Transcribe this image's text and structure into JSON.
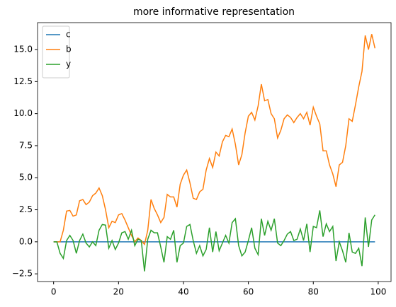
{
  "chart_data": {
    "type": "line",
    "title": "more informative representation",
    "x": [
      0,
      1,
      2,
      3,
      4,
      5,
      6,
      7,
      8,
      9,
      10,
      11,
      12,
      13,
      14,
      15,
      16,
      17,
      18,
      19,
      20,
      21,
      22,
      23,
      24,
      25,
      26,
      27,
      28,
      29,
      30,
      31,
      32,
      33,
      34,
      35,
      36,
      37,
      38,
      39,
      40,
      41,
      42,
      43,
      44,
      45,
      46,
      47,
      48,
      49,
      50,
      51,
      52,
      53,
      54,
      55,
      56,
      57,
      58,
      59,
      60,
      61,
      62,
      63,
      64,
      65,
      66,
      67,
      68,
      69,
      70,
      71,
      72,
      73,
      74,
      75,
      76,
      77,
      78,
      79,
      80,
      81,
      82,
      83,
      84,
      85,
      86,
      87,
      88,
      89,
      90,
      91,
      92,
      93,
      94,
      95,
      96,
      97,
      98,
      99
    ],
    "series": [
      {
        "name": "c",
        "color": "#1f77b4",
        "values": [
          0,
          0,
          0,
          0,
          0,
          0,
          0,
          0,
          0,
          0,
          0,
          0,
          0,
          0,
          0,
          0,
          0,
          0,
          0,
          0,
          0,
          0,
          0,
          0,
          0,
          0,
          0,
          0,
          0,
          0,
          0,
          0,
          0,
          0,
          0,
          0,
          0,
          0,
          0,
          0,
          0,
          0,
          0,
          0,
          0,
          0,
          0,
          0,
          0,
          0,
          0,
          0,
          0,
          0,
          0,
          0,
          0,
          0,
          0,
          0,
          0,
          0,
          0,
          0,
          0,
          0,
          0,
          0,
          0,
          0,
          0,
          0,
          0,
          0,
          0,
          0,
          0,
          0,
          0,
          0,
          0,
          0,
          0,
          0,
          0,
          0,
          0,
          0,
          0,
          0,
          0,
          0,
          0,
          0,
          0,
          0,
          0,
          0,
          0,
          0
        ]
      },
      {
        "name": "b",
        "color": "#ff7f0e",
        "values": [
          0,
          0,
          0,
          0.9,
          2.4,
          2.45,
          2.0,
          2.1,
          3.2,
          3.3,
          2.9,
          3.1,
          3.6,
          3.8,
          4.2,
          3.6,
          2.5,
          1.1,
          1.6,
          1.5,
          2.1,
          2.2,
          1.7,
          1.1,
          0.5,
          0.0,
          0.3,
          0.1,
          -0.2,
          0.9,
          3.3,
          2.6,
          2.1,
          1.5,
          1.9,
          3.7,
          3.5,
          3.5,
          2.7,
          4.5,
          5.2,
          5.6,
          4.6,
          3.4,
          3.3,
          3.9,
          4.1,
          5.6,
          6.5,
          5.8,
          7.0,
          6.7,
          7.8,
          8.3,
          8.2,
          8.8,
          7.6,
          6.0,
          6.8,
          8.5,
          9.8,
          10.1,
          9.5,
          10.6,
          12.3,
          11.0,
          11.1,
          10.0,
          9.6,
          8.1,
          8.7,
          9.6,
          9.9,
          9.7,
          9.3,
          9.7,
          10.0,
          9.6,
          10.1,
          9.1,
          10.5,
          9.8,
          9.2,
          7.1,
          7.1,
          6.0,
          5.3,
          4.3,
          6.0,
          6.2,
          7.5,
          9.6,
          9.4,
          10.7,
          12.1,
          13.3,
          16.1,
          15.0,
          16.2,
          15.1
        ]
      },
      {
        "name": "y",
        "color": "#2ca02c",
        "values": [
          0,
          0,
          -0.9,
          -1.3,
          0.1,
          0.5,
          0.1,
          -0.9,
          0.1,
          0.6,
          -0.1,
          -0.4,
          0.0,
          -0.3,
          0.9,
          1.35,
          1.3,
          -0.5,
          0.1,
          -0.6,
          -0.1,
          0.7,
          0.8,
          0.2,
          0.9,
          -0.3,
          0.2,
          0.1,
          -2.3,
          0.2,
          0.9,
          0.7,
          0.7,
          -0.4,
          -1.6,
          0.4,
          0.2,
          0.9,
          -1.6,
          -0.3,
          -0.1,
          1.2,
          1.35,
          0.1,
          -0.9,
          -0.3,
          -1.1,
          -0.6,
          1.1,
          -0.8,
          0.8,
          -0.7,
          -0.1,
          0.5,
          -0.1,
          1.5,
          1.8,
          -0.3,
          -1.1,
          -0.8,
          0.1,
          1.1,
          -0.5,
          -1.0,
          1.8,
          0.5,
          1.6,
          0.9,
          1.8,
          -0.1,
          -0.3,
          0.1,
          0.6,
          0.8,
          0.1,
          0.2,
          1.0,
          0.1,
          1.4,
          -0.8,
          1.2,
          1.1,
          2.45,
          0.4,
          1.4,
          0.8,
          1.2,
          -1.5,
          0.0,
          -0.7,
          -1.6,
          0.7,
          -0.8,
          -0.9,
          -0.5,
          -1.9,
          1.9,
          -0.4,
          1.7,
          2.1
        ]
      }
    ],
    "xlim": [
      -4.95,
      103.95
    ],
    "xticks": [
      0,
      20,
      40,
      60,
      80,
      100
    ],
    "ylim": [
      -3.1,
      17.1
    ],
    "yticks": [
      {
        "value": -2.5,
        "label": "−2.5"
      },
      {
        "value": 0,
        "label": "0.0"
      },
      {
        "value": 2.5,
        "label": "2.5"
      },
      {
        "value": 5,
        "label": "5.0"
      },
      {
        "value": 7.5,
        "label": "7.5"
      },
      {
        "value": 10,
        "label": "10.0"
      },
      {
        "value": 12.5,
        "label": "12.5"
      },
      {
        "value": 15,
        "label": "15.0"
      }
    ],
    "legend": "upper left"
  }
}
